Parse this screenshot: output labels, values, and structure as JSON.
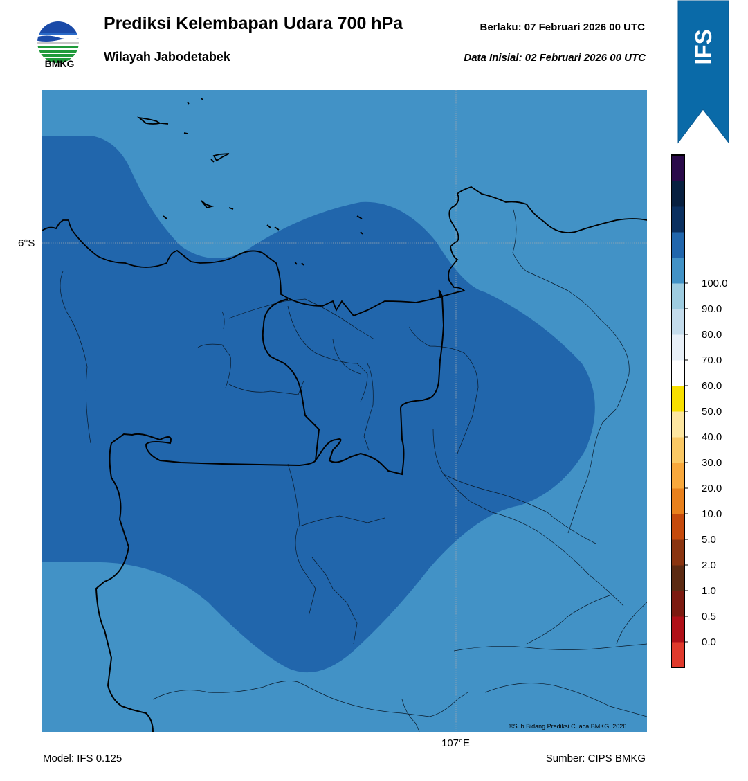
{
  "header": {
    "title": "Prediksi Kelembapan Udara 700 hPa",
    "subtitle": "Wilayah Jabodetabek",
    "valid": "Berlaku:  07 Februari 2026 00 UTC",
    "initial": "Data Inisial:  02 Februari 2026 00 UTC"
  },
  "logo": {
    "text": "BMKG"
  },
  "ribbon": {
    "text": "IFS",
    "color": "#0a6aa8"
  },
  "map": {
    "lat_label": "6°S",
    "lon_label": "107°E",
    "copyright": "©Sub Bidang Prediksi Cuaca BMKG, 2026"
  },
  "footer": {
    "model": "Model: IFS 0.125",
    "source": "Sumber: CIPS BMKG"
  },
  "colorbar": {
    "ticks": [
      "0.0",
      "0.5",
      "1.0",
      "2.0",
      "5.0",
      "10.0",
      "20.0",
      "30.0",
      "40.0",
      "50.0",
      "60.0",
      "70.0",
      "80.0",
      "90.0",
      "100.0"
    ],
    "colors": [
      "#e03a2c",
      "#b01018",
      "#7c1a10",
      "#5c2a12",
      "#8a3410",
      "#c54a0c",
      "#e8801c",
      "#f8a83c",
      "#fac864",
      "#fde6a0",
      "#f8e000",
      "#ffffff",
      "#e8f0f8",
      "#c4dcec",
      "#9ecce0",
      "#4292c6",
      "#2166ac",
      "#0b3060",
      "#082040",
      "#2a0a4a"
    ]
  }
}
